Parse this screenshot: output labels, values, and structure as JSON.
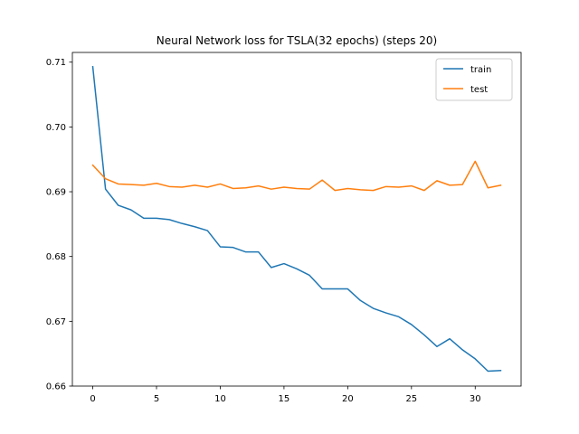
{
  "chart_data": {
    "type": "line",
    "title": "Neural Network loss for TSLA(32 epochs) (steps 20)",
    "xlabel": "",
    "ylabel": "",
    "xlim": [
      -1.6,
      33.6
    ],
    "ylim": [
      0.66,
      0.7115
    ],
    "xticks": [
      0,
      5,
      10,
      15,
      20,
      25,
      30
    ],
    "yticks": [
      0.66,
      0.67,
      0.68,
      0.69,
      0.7,
      0.71
    ],
    "ytick_labels": [
      "0.66",
      "0.67",
      "0.68",
      "0.69",
      "0.70",
      "0.71"
    ],
    "grid": false,
    "legend_position": "top-right",
    "x": [
      0,
      1,
      2,
      3,
      4,
      5,
      6,
      7,
      8,
      9,
      10,
      11,
      12,
      13,
      14,
      15,
      16,
      17,
      18,
      19,
      20,
      21,
      22,
      23,
      24,
      25,
      26,
      27,
      28,
      29,
      30,
      31,
      32
    ],
    "series": [
      {
        "name": "train",
        "color": "#1f77b4",
        "values": [
          0.7093,
          0.6904,
          0.6879,
          0.6872,
          0.6859,
          0.6859,
          0.6857,
          0.6851,
          0.6846,
          0.684,
          0.6815,
          0.6814,
          0.6807,
          0.6807,
          0.6783,
          0.6789,
          0.6781,
          0.6771,
          0.675,
          0.675,
          0.675,
          0.6732,
          0.672,
          0.6713,
          0.6707,
          0.6695,
          0.6679,
          0.6661,
          0.6673,
          0.6656,
          0.6642,
          0.6623,
          0.6624
        ]
      },
      {
        "name": "test",
        "color": "#ff7f0e",
        "values": [
          0.6941,
          0.692,
          0.6912,
          0.6911,
          0.691,
          0.6913,
          0.6908,
          0.6907,
          0.691,
          0.6907,
          0.6912,
          0.6905,
          0.6906,
          0.6909,
          0.6904,
          0.6907,
          0.6905,
          0.6904,
          0.6918,
          0.6902,
          0.6905,
          0.6903,
          0.6902,
          0.6908,
          0.6907,
          0.6909,
          0.6902,
          0.6917,
          0.691,
          0.6911,
          0.6947,
          0.6906,
          0.691
        ]
      }
    ]
  }
}
